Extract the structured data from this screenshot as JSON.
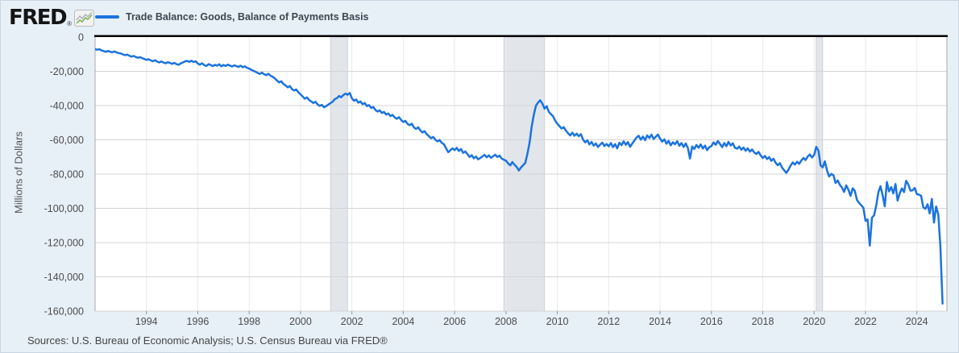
{
  "header": {
    "logo_text": "FRED",
    "logo_registered": "®",
    "legend_label": "Trade Balance: Goods, Balance of Payments Basis"
  },
  "footer": {
    "sources": "Sources: U.S. Bureau of Economic Analysis; U.S. Census Bureau via FRED®"
  },
  "colors": {
    "line": "#1b73de",
    "background": "#e7eff7",
    "plot_bg": "#ffffff",
    "gridline": "#d4d4d4",
    "year_gridline": "#ebebeb",
    "recession_band": "#e2e6eb",
    "recession_band_edge": "#cdd3d9",
    "axis_top": "#000000",
    "plot_border": "#a8a8a8",
    "tick_mark": "#8a98a6",
    "tick_text": "#4d4d4d",
    "logo_green": "#6fae4e",
    "logo_gray": "#a8adb3"
  },
  "chart_data": {
    "type": "line",
    "title": "Trade Balance: Goods, Balance of Payments Basis",
    "ylabel": "Millions of Dollars",
    "frequency": "monthly",
    "x_start": 1992.0,
    "xlim": [
      1992.0,
      2025.17
    ],
    "ylim": [
      -160000,
      0
    ],
    "grid": true,
    "legend_position": "top-left",
    "y_ticks": [
      {
        "value": 0,
        "label": "0"
      },
      {
        "value": -20000,
        "label": "-20,000"
      },
      {
        "value": -40000,
        "label": "-40,000"
      },
      {
        "value": -60000,
        "label": "-60,000"
      },
      {
        "value": -80000,
        "label": "-80,000"
      },
      {
        "value": -100000,
        "label": "-100,000"
      },
      {
        "value": -120000,
        "label": "-120,000"
      },
      {
        "value": -140000,
        "label": "-140,000"
      },
      {
        "value": -160000,
        "label": "-160,000"
      }
    ],
    "x_ticks": [
      {
        "value": 1994,
        "label": "1994"
      },
      {
        "value": 1996,
        "label": "1996"
      },
      {
        "value": 1998,
        "label": "1998"
      },
      {
        "value": 2000,
        "label": "2000"
      },
      {
        "value": 2002,
        "label": "2002"
      },
      {
        "value": 2004,
        "label": "2004"
      },
      {
        "value": 2006,
        "label": "2006"
      },
      {
        "value": 2008,
        "label": "2008"
      },
      {
        "value": 2010,
        "label": "2010"
      },
      {
        "value": 2012,
        "label": "2012"
      },
      {
        "value": 2014,
        "label": "2014"
      },
      {
        "value": 2016,
        "label": "2016"
      },
      {
        "value": 2018,
        "label": "2018"
      },
      {
        "value": 2020,
        "label": "2020"
      },
      {
        "value": 2022,
        "label": "2022"
      },
      {
        "value": 2024,
        "label": "2024"
      }
    ],
    "recessions": [
      {
        "start": 2001.17,
        "end": 2001.83
      },
      {
        "start": 2007.92,
        "end": 2009.5
      },
      {
        "start": 2020.08,
        "end": 2020.33
      }
    ],
    "series": [
      {
        "name": "Trade Balance: Goods, Balance of Payments Basis",
        "units": "Millions of Dollars",
        "values": [
          -7000,
          -7400,
          -7100,
          -7800,
          -8200,
          -8600,
          -8100,
          -8500,
          -8900,
          -8400,
          -9000,
          -9300,
          -9600,
          -10100,
          -10600,
          -10200,
          -10900,
          -11400,
          -11000,
          -11600,
          -12100,
          -11700,
          -12300,
          -12800,
          -13300,
          -12900,
          -13600,
          -14100,
          -13500,
          -14300,
          -14800,
          -14200,
          -14900,
          -15300,
          -14700,
          -15100,
          -15600,
          -15000,
          -15800,
          -16200,
          -15400,
          -14800,
          -14200,
          -13900,
          -14500,
          -13800,
          -14600,
          -14100,
          -15500,
          -16100,
          -15300,
          -16400,
          -16900,
          -15800,
          -16300,
          -17000,
          -16200,
          -16700,
          -15900,
          -17100,
          -16300,
          -16900,
          -16100,
          -16600,
          -17200,
          -16500,
          -17000,
          -17400,
          -16700,
          -17600,
          -17100,
          -17900,
          -18400,
          -19100,
          -19700,
          -20300,
          -21000,
          -21500,
          -20800,
          -21700,
          -22200,
          -21400,
          -22600,
          -23200,
          -24200,
          -25300,
          -26500,
          -25800,
          -27400,
          -28200,
          -29300,
          -28600,
          -30400,
          -31200,
          -30600,
          -32300,
          -33400,
          -34700,
          -36000,
          -35200,
          -36800,
          -37600,
          -38500,
          -37800,
          -39400,
          -40200,
          -39600,
          -41000,
          -40300,
          -39400,
          -38600,
          -37700,
          -36300,
          -35600,
          -34400,
          -35100,
          -33900,
          -33000,
          -33700,
          -32600,
          -35800,
          -37200,
          -36400,
          -38300,
          -37600,
          -39200,
          -38500,
          -40300,
          -39700,
          -41400,
          -40800,
          -42600,
          -43500,
          -42800,
          -44300,
          -43700,
          -45200,
          -44600,
          -46100,
          -45400,
          -46900,
          -47700,
          -46800,
          -48400,
          -49600,
          -48900,
          -50700,
          -51500,
          -50600,
          -52800,
          -53600,
          -52700,
          -54500,
          -55700,
          -54900,
          -56800,
          -57900,
          -59100,
          -58300,
          -60000,
          -60900,
          -60100,
          -61800,
          -62600,
          -64900,
          -67200,
          -66100,
          -65000,
          -66000,
          -64700,
          -66500,
          -65400,
          -67600,
          -66800,
          -68400,
          -70000,
          -69000,
          -70800,
          -69800,
          -71400,
          -70600,
          -69700,
          -68800,
          -70200,
          -69100,
          -70500,
          -69600,
          -68700,
          -70000,
          -69200,
          -70900,
          -71600,
          -72200,
          -73800,
          -74900,
          -73000,
          -74600,
          -75800,
          -77900,
          -76200,
          -74800,
          -73500,
          -68300,
          -61800,
          -52400,
          -45300,
          -40100,
          -38200,
          -36900,
          -38800,
          -41800,
          -40400,
          -43600,
          -45000,
          -46200,
          -48800,
          -50600,
          -52000,
          -53400,
          -52600,
          -54600,
          -56200,
          -57400,
          -55800,
          -57600,
          -56400,
          -57900,
          -56700,
          -59800,
          -61500,
          -60300,
          -62700,
          -61200,
          -63400,
          -62100,
          -64200,
          -62800,
          -61600,
          -63600,
          -62400,
          -63800,
          -61900,
          -64300,
          -62500,
          -65000,
          -61700,
          -63100,
          -60900,
          -62900,
          -61300,
          -64100,
          -62200,
          -60400,
          -58700,
          -57600,
          -59900,
          -58100,
          -60200,
          -57400,
          -58900,
          -57000,
          -59500,
          -58200,
          -56900,
          -59300,
          -61100,
          -59700,
          -62300,
          -60600,
          -63200,
          -61400,
          -62600,
          -60800,
          -63500,
          -61900,
          -64200,
          -62100,
          -64800,
          -70900,
          -63900,
          -65300,
          -63000,
          -64600,
          -62700,
          -65100,
          -63400,
          -66000,
          -64300,
          -63600,
          -61500,
          -62900,
          -60700,
          -62400,
          -64300,
          -61900,
          -63700,
          -61200,
          -63300,
          -62000,
          -64600,
          -65200,
          -63900,
          -65800,
          -64500,
          -66400,
          -65000,
          -66900,
          -65600,
          -67400,
          -68300,
          -67000,
          -69100,
          -70600,
          -69400,
          -71200,
          -70100,
          -72300,
          -71000,
          -73400,
          -74800,
          -73600,
          -76200,
          -77800,
          -79300,
          -77400,
          -75100,
          -73200,
          -74500,
          -72800,
          -74000,
          -72100,
          -70600,
          -71800,
          -69700,
          -68500,
          -70300,
          -68800,
          -64100,
          -66300,
          -74900,
          -76100,
          -72500,
          -77800,
          -81400,
          -79900,
          -80600,
          -85200,
          -83700,
          -86200,
          -87900,
          -90400,
          -86600,
          -89100,
          -92700,
          -88300,
          -89800,
          -95100,
          -96800,
          -98200,
          -99600,
          -107300,
          -106500,
          -121800,
          -105400,
          -104100,
          -98400,
          -90700,
          -87100,
          -92300,
          -98800,
          -84600,
          -90100,
          -87600,
          -91300,
          -85800,
          -95500,
          -91200,
          -88400,
          -90500,
          -83900,
          -86000,
          -89700,
          -89500,
          -88100,
          -91700,
          -92000,
          -92700,
          -99400,
          -100300,
          -97600,
          -103000,
          -94500,
          -108300,
          -98900,
          -103600,
          -122200,
          -155600
        ]
      }
    ]
  }
}
